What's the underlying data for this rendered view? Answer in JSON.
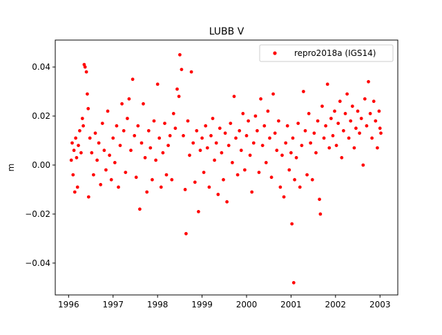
{
  "chart_data": {
    "type": "scatter",
    "title": "LUBB V",
    "xlabel": "",
    "ylabel": "m",
    "xlim": [
      1995.7,
      2003.4
    ],
    "ylim": [
      -0.053,
      0.051
    ],
    "x_ticks": [
      1996,
      1997,
      1998,
      1999,
      2000,
      2001,
      2002,
      2003
    ],
    "x_tick_labels": [
      "1996",
      "1997",
      "1998",
      "1999",
      "2000",
      "2001",
      "2002",
      "2003"
    ],
    "y_ticks": [
      -0.04,
      -0.02,
      0.0,
      0.02,
      0.04
    ],
    "y_tick_labels": [
      "−0.04",
      "−0.02",
      "0.00",
      "0.02",
      "0.04"
    ],
    "grid": false,
    "legend_position": "top-right",
    "series": [
      {
        "name": "repro2018a (IGS14)",
        "color": "#ff0000",
        "marker": "circle",
        "note_trend": "daily vertical residuals, ~0.005 m mean in 1996 rising to ~0.018 m by 2003, scatter ~0.008 m",
        "points": [
          [
            1996.06,
            0.002
          ],
          [
            1996.08,
            0.009
          ],
          [
            1996.1,
            -0.004
          ],
          [
            1996.12,
            0.006
          ],
          [
            1996.14,
            -0.011
          ],
          [
            1996.16,
            0.011
          ],
          [
            1996.18,
            0.003
          ],
          [
            1996.2,
            -0.009
          ],
          [
            1996.22,
            0.008
          ],
          [
            1996.25,
            0.014
          ],
          [
            1996.28,
            0.005
          ],
          [
            1996.31,
            0.019
          ],
          [
            1996.33,
            0.016
          ],
          [
            1996.35,
            0.041
          ],
          [
            1996.37,
            0.04
          ],
          [
            1996.4,
            0.038
          ],
          [
            1996.42,
            0.029
          ],
          [
            1996.44,
            0.023
          ],
          [
            1996.45,
            -0.013
          ],
          [
            1996.48,
            0.011
          ],
          [
            1996.52,
            0.005
          ],
          [
            1996.56,
            -0.004
          ],
          [
            1996.6,
            0.013
          ],
          [
            1996.64,
            0.002
          ],
          [
            1996.68,
            0.009
          ],
          [
            1996.72,
            -0.008
          ],
          [
            1996.76,
            0.017
          ],
          [
            1996.8,
            0.006
          ],
          [
            1996.84,
            -0.002
          ],
          [
            1996.88,
            0.022
          ],
          [
            1996.92,
            0.004
          ],
          [
            1996.96,
            -0.006
          ],
          [
            1997.0,
            0.011
          ],
          [
            1997.04,
            0.001
          ],
          [
            1997.08,
            0.016
          ],
          [
            1997.12,
            -0.009
          ],
          [
            1997.16,
            0.008
          ],
          [
            1997.2,
            0.025
          ],
          [
            1997.24,
            0.014
          ],
          [
            1997.28,
            -0.003
          ],
          [
            1997.32,
            0.019
          ],
          [
            1997.36,
            0.027
          ],
          [
            1997.4,
            0.006
          ],
          [
            1997.44,
            0.035
          ],
          [
            1997.48,
            0.012
          ],
          [
            1997.52,
            -0.005
          ],
          [
            1997.56,
            0.016
          ],
          [
            1997.6,
            -0.018
          ],
          [
            1997.64,
            0.009
          ],
          [
            1997.68,
            0.025
          ],
          [
            1997.72,
            0.003
          ],
          [
            1997.76,
            -0.011
          ],
          [
            1997.8,
            0.014
          ],
          [
            1997.84,
            0.007
          ],
          [
            1997.88,
            -0.006
          ],
          [
            1997.92,
            0.018
          ],
          [
            1997.96,
            0.002
          ],
          [
            1998.0,
            0.033
          ],
          [
            1998.04,
            0.011
          ],
          [
            1998.08,
            -0.009
          ],
          [
            1998.12,
            0.005
          ],
          [
            1998.16,
            0.017
          ],
          [
            1998.2,
            -0.004
          ],
          [
            1998.24,
            0.008
          ],
          [
            1998.28,
            0.012
          ],
          [
            1998.32,
            -0.006
          ],
          [
            1998.36,
            0.021
          ],
          [
            1998.4,
            0.015
          ],
          [
            1998.44,
            0.031
          ],
          [
            1998.48,
            0.028
          ],
          [
            1998.5,
            0.045
          ],
          [
            1998.54,
            0.039
          ],
          [
            1998.58,
            0.012
          ],
          [
            1998.62,
            -0.01
          ],
          [
            1998.64,
            -0.028
          ],
          [
            1998.68,
            0.018
          ],
          [
            1998.72,
            0.004
          ],
          [
            1998.76,
            0.038
          ],
          [
            1998.8,
            0.009
          ],
          [
            1998.84,
            -0.007
          ],
          [
            1998.88,
            0.014
          ],
          [
            1998.92,
            -0.019
          ],
          [
            1998.96,
            0.006
          ],
          [
            1999.0,
            0.011
          ],
          [
            1999.04,
            -0.003
          ],
          [
            1999.08,
            0.016
          ],
          [
            1999.12,
            0.007
          ],
          [
            1999.16,
            -0.009
          ],
          [
            1999.2,
            0.012
          ],
          [
            1999.24,
            0.019
          ],
          [
            1999.28,
            0.002
          ],
          [
            1999.32,
            0.009
          ],
          [
            1999.36,
            -0.012
          ],
          [
            1999.4,
            0.015
          ],
          [
            1999.44,
            0.005
          ],
          [
            1999.48,
            -0.006
          ],
          [
            1999.52,
            0.013
          ],
          [
            1999.56,
            -0.015
          ],
          [
            1999.6,
            0.008
          ],
          [
            1999.64,
            0.017
          ],
          [
            1999.68,
            0.001
          ],
          [
            1999.72,
            0.028
          ],
          [
            1999.76,
            0.011
          ],
          [
            1999.8,
            -0.004
          ],
          [
            1999.84,
            0.014
          ],
          [
            1999.88,
            0.006
          ],
          [
            1999.92,
            0.021
          ],
          [
            1999.96,
            -0.002
          ],
          [
            2000.0,
            0.012
          ],
          [
            2000.04,
            0.018
          ],
          [
            2000.08,
            0.004
          ],
          [
            2000.12,
            -0.011
          ],
          [
            2000.16,
            0.009
          ],
          [
            2000.2,
            0.02
          ],
          [
            2000.24,
            0.014
          ],
          [
            2000.28,
            -0.003
          ],
          [
            2000.32,
            0.027
          ],
          [
            2000.36,
            0.008
          ],
          [
            2000.4,
            0.016
          ],
          [
            2000.44,
            0.001
          ],
          [
            2000.48,
            0.022
          ],
          [
            2000.52,
            0.011
          ],
          [
            2000.56,
            -0.005
          ],
          [
            2000.6,
            0.029
          ],
          [
            2000.64,
            0.013
          ],
          [
            2000.68,
            0.006
          ],
          [
            2000.72,
            0.018
          ],
          [
            2000.76,
            -0.009
          ],
          [
            2000.8,
            0.004
          ],
          [
            2000.84,
            -0.013
          ],
          [
            2000.88,
            0.009
          ],
          [
            2000.92,
            0.016
          ],
          [
            2000.96,
            -0.002
          ],
          [
            2001.0,
            0.005
          ],
          [
            2001.02,
            -0.024
          ],
          [
            2001.04,
            0.011
          ],
          [
            2001.06,
            -0.048
          ],
          [
            2001.08,
            -0.006
          ],
          [
            2001.12,
            0.003
          ],
          [
            2001.16,
            0.017
          ],
          [
            2001.2,
            -0.009
          ],
          [
            2001.24,
            0.008
          ],
          [
            2001.28,
            0.03
          ],
          [
            2001.32,
            0.014
          ],
          [
            2001.36,
            -0.004
          ],
          [
            2001.4,
            0.021
          ],
          [
            2001.44,
            0.009
          ],
          [
            2001.48,
            -0.006
          ],
          [
            2001.52,
            0.013
          ],
          [
            2001.56,
            0.005
          ],
          [
            2001.6,
            0.018
          ],
          [
            2001.64,
            -0.014
          ],
          [
            2001.66,
            -0.02
          ],
          [
            2001.7,
            0.024
          ],
          [
            2001.74,
            0.011
          ],
          [
            2001.78,
            0.016
          ],
          [
            2001.82,
            0.033
          ],
          [
            2001.86,
            0.007
          ],
          [
            2001.9,
            0.019
          ],
          [
            2001.94,
            0.012
          ],
          [
            2001.98,
            0.022
          ],
          [
            2002.02,
            0.008
          ],
          [
            2002.06,
            0.017
          ],
          [
            2002.1,
            0.026
          ],
          [
            2002.14,
            0.003
          ],
          [
            2002.18,
            0.014
          ],
          [
            2002.22,
            0.021
          ],
          [
            2002.26,
            0.029
          ],
          [
            2002.3,
            0.011
          ],
          [
            2002.34,
            0.018
          ],
          [
            2002.38,
            0.024
          ],
          [
            2002.42,
            0.007
          ],
          [
            2002.46,
            0.015
          ],
          [
            2002.5,
            0.022
          ],
          [
            2002.54,
            0.013
          ],
          [
            2002.58,
            0.019
          ],
          [
            2002.62,
            0.0
          ],
          [
            2002.66,
            0.027
          ],
          [
            2002.7,
            0.016
          ],
          [
            2002.74,
            0.034
          ],
          [
            2002.78,
            0.021
          ],
          [
            2002.82,
            0.011
          ],
          [
            2002.86,
            0.026
          ],
          [
            2002.9,
            0.018
          ],
          [
            2002.94,
            0.007
          ],
          [
            2002.98,
            0.022
          ],
          [
            2003.0,
            0.015
          ],
          [
            2003.02,
            0.013
          ]
        ]
      }
    ]
  }
}
